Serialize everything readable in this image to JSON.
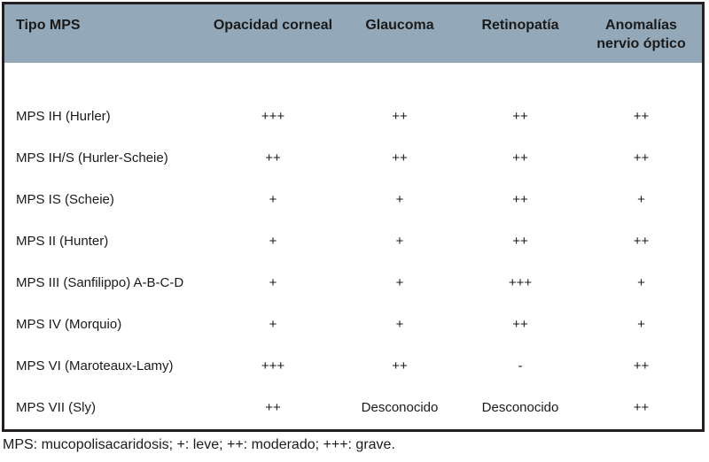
{
  "colors": {
    "header_bg": "#93a9ba",
    "border": "#231f20",
    "text": "#1a1a1a"
  },
  "table": {
    "columns": [
      "Tipo MPS",
      "Opacidad corneal",
      "Glaucoma",
      "Retinopatía",
      "Anomalías\nnervio óptico"
    ],
    "rows": [
      {
        "label": "MPS IH (Hurler)",
        "values": [
          "+++",
          "++",
          "++",
          "++"
        ]
      },
      {
        "label": "MPS IH/S (Hurler-Scheie)",
        "values": [
          "++",
          "++",
          "++",
          "++"
        ]
      },
      {
        "label": "MPS IS (Scheie)",
        "values": [
          "+",
          "+",
          "++",
          "+"
        ]
      },
      {
        "label": "MPS II (Hunter)",
        "values": [
          "+",
          "+",
          "++",
          "++"
        ]
      },
      {
        "label": "MPS III (Sanfilippo) A-B-C-D",
        "values": [
          "+",
          "+",
          "+++",
          "+"
        ]
      },
      {
        "label": "MPS IV (Morquio)",
        "values": [
          "+",
          "+",
          "++",
          "+"
        ]
      },
      {
        "label": "MPS VI (Maroteaux-Lamy)",
        "values": [
          "+++",
          "++",
          "-",
          "++"
        ]
      },
      {
        "label": "MPS VII (Sly)",
        "values": [
          "++",
          "Desconocido",
          "Desconocido",
          "++"
        ]
      }
    ]
  },
  "footnote": "MPS: mucopolisacaridosis; +: leve; ++:  moderado; +++: grave."
}
